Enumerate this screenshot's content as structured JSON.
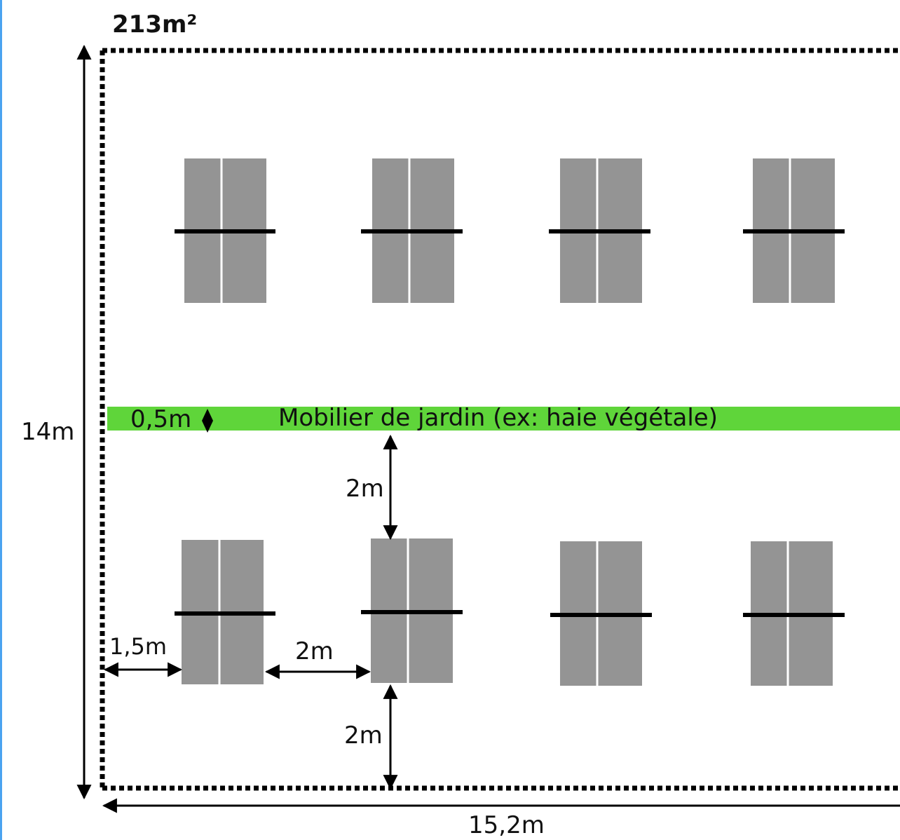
{
  "area_label": "213m²",
  "height_label": "14m",
  "width_label": "15,2m",
  "hedge": {
    "label": "Mobilier de jardin (ex: haie végétale)",
    "thickness_label": "0,5m",
    "color": "#5fd53a"
  },
  "spacing": {
    "hedge_to_row": "2m",
    "row_to_bottom": "2m",
    "table_gap": "2m",
    "left_margin": "1,5m"
  },
  "colors": {
    "table": "#949494",
    "bench": "#000000",
    "frame_accent": "#4aa3f0"
  }
}
